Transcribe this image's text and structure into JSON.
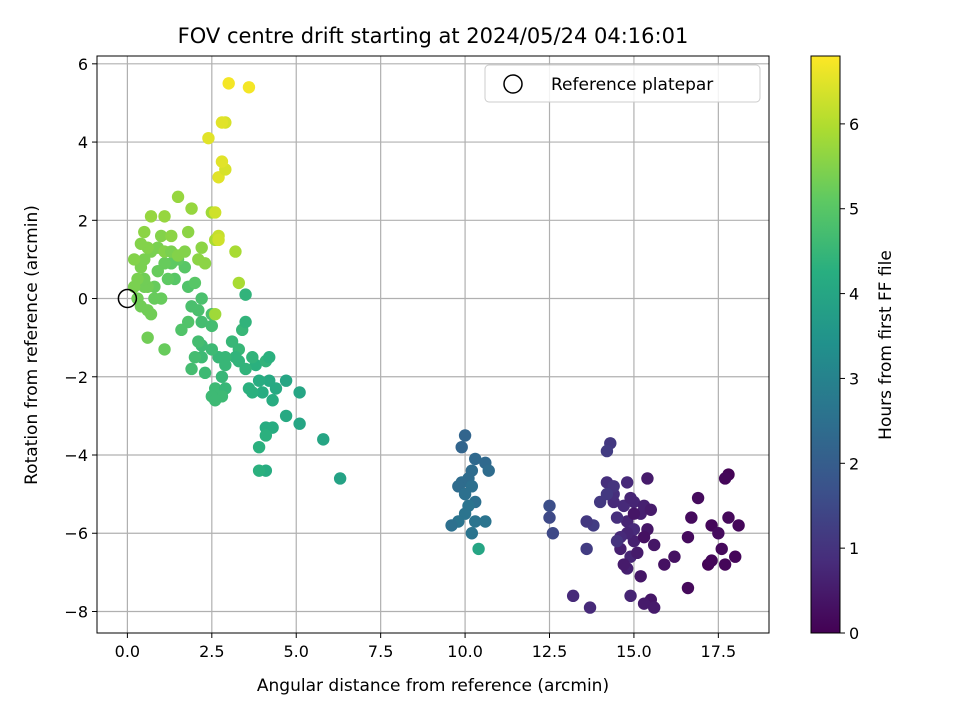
{
  "chart_data": {
    "type": "scatter",
    "title": "FOV centre drift starting at 2024/05/24 04:16:01",
    "xlabel": "Angular distance from reference (arcmin)",
    "ylabel": "Rotation from reference (arcmin)",
    "xlim": [
      -0.9,
      19.0
    ],
    "ylim": [
      -8.55,
      6.2
    ],
    "xticks": [
      0.0,
      2.5,
      5.0,
      7.5,
      10.0,
      12.5,
      15.0,
      17.5
    ],
    "xtick_labels": [
      "0.0",
      "2.5",
      "5.0",
      "7.5",
      "10.0",
      "12.5",
      "15.0",
      "17.5"
    ],
    "yticks": [
      -8,
      -6,
      -4,
      -2,
      0,
      2,
      4,
      6
    ],
    "ytick_labels": [
      "−8",
      "−6",
      "−4",
      "−2",
      "0",
      "2",
      "4",
      "6"
    ],
    "grid": true,
    "colormap": "viridis",
    "colorbar": {
      "label": "Hours from first FF file",
      "range": [
        0,
        6.8
      ],
      "ticks": [
        0,
        1,
        2,
        3,
        4,
        5,
        6
      ],
      "tick_labels": [
        "0",
        "1",
        "2",
        "3",
        "4",
        "5",
        "6"
      ]
    },
    "legend": {
      "placement": "top-right",
      "entries": [
        {
          "label": "Reference platepar",
          "marker": "open-circle"
        }
      ]
    },
    "reference_point": {
      "x": 0.0,
      "y": 0.0
    },
    "points": [
      [
        17.8,
        -4.5,
        0.05
      ],
      [
        17.7,
        -4.6,
        0.1
      ],
      [
        18.1,
        -5.8,
        0.1
      ],
      [
        17.8,
        -5.6,
        0.15
      ],
      [
        17.3,
        -5.8,
        0.1
      ],
      [
        16.9,
        -5.1,
        0.2
      ],
      [
        16.7,
        -5.6,
        0.2
      ],
      [
        17.2,
        -6.8,
        0.05
      ],
      [
        17.3,
        -6.7,
        0.1
      ],
      [
        17.6,
        -6.4,
        0.15
      ],
      [
        17.7,
        -6.8,
        0.1
      ],
      [
        18.0,
        -6.6,
        0.1
      ],
      [
        17.5,
        -6.0,
        0.2
      ],
      [
        16.6,
        -6.1,
        0.2
      ],
      [
        16.6,
        -7.4,
        0.15
      ],
      [
        16.2,
        -6.6,
        0.3
      ],
      [
        15.9,
        -6.8,
        0.3
      ],
      [
        15.4,
        -5.9,
        0.4
      ],
      [
        15.6,
        -6.3,
        0.4
      ],
      [
        15.2,
        -7.1,
        0.4
      ],
      [
        15.5,
        -7.7,
        0.4
      ],
      [
        15.3,
        -7.8,
        0.5
      ],
      [
        15.6,
        -7.9,
        0.5
      ],
      [
        15.4,
        -4.6,
        0.5
      ],
      [
        15.2,
        -5.5,
        0.6
      ],
      [
        15.0,
        -5.2,
        0.7
      ],
      [
        14.8,
        -5.7,
        0.7
      ],
      [
        14.6,
        -6.4,
        0.6
      ],
      [
        14.9,
        -6.6,
        0.7
      ],
      [
        14.8,
        -6.9,
        0.6
      ],
      [
        14.9,
        -7.6,
        0.7
      ],
      [
        15.0,
        -5.9,
        0.8
      ],
      [
        14.7,
        -5.3,
        0.8
      ],
      [
        14.4,
        -5.2,
        0.8
      ],
      [
        14.4,
        -5.0,
        0.9
      ],
      [
        14.5,
        -5.6,
        0.9
      ],
      [
        14.2,
        -4.7,
        0.9
      ],
      [
        14.8,
        -4.7,
        0.8
      ],
      [
        14.4,
        -4.8,
        1.0
      ],
      [
        15.3,
        -5.3,
        0.6
      ],
      [
        15.0,
        -6.2,
        0.6
      ],
      [
        14.8,
        -6.0,
        0.7
      ],
      [
        14.6,
        -6.1,
        0.8
      ],
      [
        15.1,
        -6.5,
        0.5
      ],
      [
        15.5,
        -5.4,
        0.5
      ],
      [
        14.9,
        -5.1,
        0.7
      ],
      [
        14.5,
        -6.2,
        1.0
      ],
      [
        14.2,
        -5.0,
        1.1
      ],
      [
        14.3,
        -3.7,
        1.1
      ],
      [
        14.2,
        -3.9,
        1.2
      ],
      [
        14.0,
        -5.2,
        1.1
      ],
      [
        13.8,
        -5.8,
        1.2
      ],
      [
        13.6,
        -5.7,
        1.1
      ],
      [
        13.6,
        -6.4,
        1.2
      ],
      [
        13.7,
        -7.9,
        0.8
      ],
      [
        13.2,
        -7.6,
        0.8
      ],
      [
        12.6,
        -6.0,
        1.5
      ],
      [
        12.5,
        -5.6,
        1.5
      ],
      [
        12.5,
        -5.3,
        1.6
      ],
      [
        15.0,
        -5.5,
        0.4
      ],
      [
        15.3,
        -6.1,
        0.3
      ],
      [
        14.7,
        -6.8,
        0.5
      ],
      [
        10.0,
        -3.5,
        2.2
      ],
      [
        9.9,
        -3.8,
        2.2
      ],
      [
        10.3,
        -4.1,
        2.3
      ],
      [
        10.6,
        -4.2,
        2.3
      ],
      [
        10.7,
        -4.4,
        2.4
      ],
      [
        10.2,
        -4.4,
        2.4
      ],
      [
        10.1,
        -4.6,
        2.4
      ],
      [
        9.9,
        -4.7,
        2.4
      ],
      [
        9.8,
        -4.8,
        2.4
      ],
      [
        10.2,
        -4.8,
        2.5
      ],
      [
        10.0,
        -5.0,
        2.5
      ],
      [
        10.3,
        -5.2,
        2.5
      ],
      [
        10.1,
        -5.3,
        2.6
      ],
      [
        10.0,
        -5.5,
        2.6
      ],
      [
        9.8,
        -5.7,
        2.6
      ],
      [
        9.6,
        -5.8,
        2.5
      ],
      [
        10.3,
        -5.7,
        2.6
      ],
      [
        10.6,
        -5.7,
        2.6
      ],
      [
        10.2,
        -6.0,
        2.6
      ],
      [
        10.4,
        -6.4,
        4.0
      ],
      [
        6.3,
        -4.6,
        3.9
      ],
      [
        5.8,
        -3.6,
        4.0
      ],
      [
        4.7,
        -2.1,
        4.0
      ],
      [
        5.1,
        -2.4,
        4.0
      ],
      [
        4.7,
        -3.0,
        4.1
      ],
      [
        5.1,
        -3.2,
        4.0
      ],
      [
        4.4,
        -2.3,
        4.1
      ],
      [
        4.2,
        -2.1,
        4.1
      ],
      [
        3.9,
        -2.1,
        4.2
      ],
      [
        4.0,
        -2.4,
        4.2
      ],
      [
        4.3,
        -2.6,
        4.2
      ],
      [
        3.7,
        -2.4,
        4.3
      ],
      [
        4.1,
        -3.3,
        4.2
      ],
      [
        4.3,
        -3.3,
        4.2
      ],
      [
        4.1,
        -3.5,
        4.3
      ],
      [
        3.9,
        -3.8,
        4.3
      ],
      [
        4.1,
        -4.4,
        4.2
      ],
      [
        3.9,
        -4.4,
        4.3
      ],
      [
        3.6,
        -2.3,
        4.3
      ],
      [
        3.8,
        -1.7,
        4.3
      ],
      [
        4.1,
        -1.6,
        4.4
      ],
      [
        4.2,
        -1.5,
        4.3
      ],
      [
        3.7,
        -1.5,
        4.4
      ],
      [
        3.5,
        -1.8,
        4.4
      ],
      [
        3.3,
        -1.3,
        4.5
      ],
      [
        3.3,
        -1.6,
        4.4
      ],
      [
        3.1,
        -1.1,
        4.5
      ],
      [
        3.4,
        -0.8,
        4.5
      ],
      [
        3.5,
        -0.6,
        4.4
      ],
      [
        3.5,
        0.1,
        4.4
      ],
      [
        3.2,
        -1.5,
        4.4
      ],
      [
        2.9,
        -1.5,
        4.5
      ],
      [
        2.9,
        -1.7,
        4.5
      ],
      [
        2.7,
        -1.5,
        4.5
      ],
      [
        2.5,
        -1.3,
        4.6
      ],
      [
        2.2,
        -1.2,
        4.6
      ],
      [
        2.2,
        -1.5,
        4.6
      ],
      [
        2.3,
        -1.9,
        4.6
      ],
      [
        2.6,
        -2.3,
        4.6
      ],
      [
        2.8,
        -2.0,
        4.5
      ],
      [
        2.9,
        -2.3,
        4.5
      ],
      [
        2.8,
        -2.5,
        4.6
      ],
      [
        2.5,
        -2.5,
        4.6
      ],
      [
        2.6,
        -2.6,
        4.6
      ],
      [
        1.9,
        -1.8,
        4.7
      ],
      [
        2.0,
        -1.5,
        4.7
      ],
      [
        2.1,
        -1.1,
        4.7
      ],
      [
        2.5,
        -0.7,
        4.7
      ],
      [
        2.2,
        -0.6,
        4.7
      ],
      [
        2.1,
        -0.3,
        4.8
      ],
      [
        2.5,
        -0.4,
        4.8
      ],
      [
        2.2,
        0.0,
        4.8
      ],
      [
        1.9,
        -0.2,
        4.8
      ],
      [
        1.8,
        -0.6,
        4.9
      ],
      [
        1.6,
        -0.8,
        4.9
      ],
      [
        1.8,
        0.3,
        4.9
      ],
      [
        2.0,
        0.4,
        5.0
      ],
      [
        1.7,
        0.8,
        5.0
      ],
      [
        1.4,
        0.5,
        5.0
      ],
      [
        1.2,
        0.5,
        5.1
      ],
      [
        1.3,
        0.9,
        5.1
      ],
      [
        1.5,
        1.0,
        5.1
      ],
      [
        1.1,
        0.9,
        5.2
      ],
      [
        0.9,
        0.7,
        5.2
      ],
      [
        0.8,
        0.3,
        5.2
      ],
      [
        0.8,
        0.0,
        5.2
      ],
      [
        1.0,
        0.0,
        5.2
      ],
      [
        0.6,
        0.3,
        5.3
      ],
      [
        0.5,
        0.3,
        5.3
      ],
      [
        0.3,
        0.0,
        5.3
      ],
      [
        0.4,
        -0.2,
        5.3
      ],
      [
        0.7,
        -0.4,
        5.3
      ],
      [
        0.6,
        -0.3,
        5.3
      ],
      [
        0.5,
        0.5,
        5.3
      ],
      [
        0.3,
        0.5,
        5.4
      ],
      [
        0.2,
        0.3,
        5.4
      ],
      [
        0.4,
        0.8,
        5.4
      ],
      [
        0.5,
        1.0,
        5.4
      ],
      [
        0.7,
        1.2,
        5.4
      ],
      [
        0.9,
        1.3,
        5.4
      ],
      [
        1.1,
        1.2,
        5.5
      ],
      [
        1.3,
        1.2,
        5.4
      ],
      [
        1.5,
        1.1,
        5.5
      ],
      [
        1.7,
        1.2,
        5.5
      ],
      [
        0.2,
        1.0,
        5.5
      ],
      [
        0.6,
        1.3,
        5.5
      ],
      [
        0.4,
        1.4,
        5.5
      ],
      [
        1.0,
        1.6,
        5.5
      ],
      [
        1.3,
        1.6,
        5.6
      ],
      [
        1.8,
        1.7,
        5.6
      ],
      [
        2.2,
        1.3,
        5.6
      ],
      [
        2.3,
        0.9,
        5.6
      ],
      [
        2.1,
        1.0,
        5.6
      ],
      [
        0.5,
        1.7,
        5.6
      ],
      [
        0.7,
        2.1,
        5.7
      ],
      [
        1.1,
        2.1,
        5.7
      ],
      [
        1.5,
        2.6,
        5.7
      ],
      [
        1.9,
        2.3,
        5.7
      ],
      [
        2.5,
        2.2,
        5.8
      ],
      [
        2.6,
        1.5,
        5.9
      ],
      [
        3.2,
        1.2,
        5.9
      ],
      [
        3.3,
        0.4,
        5.9
      ],
      [
        2.6,
        -0.4,
        5.8
      ],
      [
        0.6,
        -1.0,
        5.3
      ],
      [
        1.1,
        -1.3,
        5.2
      ],
      [
        2.6,
        2.2,
        6.3
      ],
      [
        2.7,
        1.6,
        6.2
      ],
      [
        2.7,
        1.5,
        6.3
      ],
      [
        2.7,
        3.1,
        6.5
      ],
      [
        2.9,
        3.3,
        6.4
      ],
      [
        2.8,
        3.5,
        6.5
      ],
      [
        2.4,
        4.1,
        6.5
      ],
      [
        2.9,
        4.5,
        6.4
      ],
      [
        2.8,
        4.5,
        6.5
      ],
      [
        3.6,
        5.4,
        6.7
      ],
      [
        3.0,
        5.5,
        6.7
      ]
    ]
  }
}
